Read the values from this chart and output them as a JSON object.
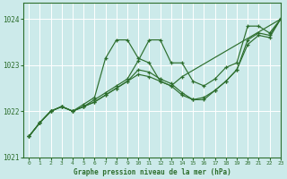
{
  "title": "Graphe pression niveau de la mer (hPa)",
  "bg_color": "#cceaea",
  "grid_color": "#aadddd",
  "line_color": "#2d6e2d",
  "xlim": [
    -0.5,
    23
  ],
  "ylim": [
    1021.0,
    1024.35
  ],
  "yticks": [
    1021,
    1022,
    1023,
    1024
  ],
  "xticks": [
    0,
    1,
    2,
    3,
    4,
    5,
    6,
    7,
    8,
    9,
    10,
    11,
    12,
    13,
    14,
    15,
    16,
    17,
    18,
    19,
    20,
    21,
    22,
    23
  ],
  "series": [
    {
      "x": [
        0,
        1,
        2,
        3,
        4,
        5,
        6,
        7,
        8,
        9,
        10,
        11,
        12,
        13,
        14,
        23
      ],
      "y": [
        1021.45,
        1021.75,
        1022.0,
        1022.1,
        1022.0,
        1022.15,
        1022.3,
        1023.15,
        1023.55,
        1023.55,
        1023.15,
        1023.05,
        1022.65,
        1022.55,
        1022.75,
        1024.0
      ]
    },
    {
      "x": [
        0,
        1,
        2,
        3,
        4,
        5,
        6,
        7,
        8,
        9,
        10,
        11,
        12,
        13,
        14,
        15,
        16,
        17,
        18,
        19,
        20,
        21,
        22,
        23
      ],
      "y": [
        1021.45,
        1021.75,
        1022.0,
        1022.1,
        1022.0,
        1022.1,
        1022.2,
        1022.35,
        1022.5,
        1022.65,
        1022.8,
        1022.75,
        1022.65,
        1022.55,
        1022.35,
        1022.25,
        1022.3,
        1022.45,
        1022.65,
        1022.9,
        1023.45,
        1023.65,
        1023.6,
        1024.0
      ]
    },
    {
      "x": [
        0,
        1,
        2,
        3,
        4,
        5,
        6,
        7,
        8,
        9,
        10,
        11,
        12,
        13,
        14,
        15,
        16,
        17,
        18,
        19,
        20,
        21,
        22,
        23
      ],
      "y": [
        1021.45,
        1021.75,
        1022.0,
        1022.1,
        1022.0,
        1022.1,
        1022.2,
        1022.35,
        1022.5,
        1022.65,
        1022.9,
        1022.85,
        1022.7,
        1022.6,
        1022.4,
        1022.25,
        1022.25,
        1022.45,
        1022.65,
        1022.9,
        1023.55,
        1023.7,
        1023.65,
        1024.0
      ]
    },
    {
      "x": [
        0,
        1,
        2,
        3,
        4,
        5,
        6,
        7,
        8,
        9,
        10,
        11,
        12,
        13,
        14,
        15,
        16,
        17,
        18,
        19,
        20,
        21,
        22,
        23
      ],
      "y": [
        1021.45,
        1021.75,
        1022.0,
        1022.1,
        1022.0,
        1022.1,
        1022.25,
        1022.4,
        1022.55,
        1022.7,
        1023.1,
        1023.55,
        1023.55,
        1023.05,
        1023.05,
        1022.65,
        1022.55,
        1022.7,
        1022.95,
        1023.05,
        1023.85,
        1023.85,
        1023.7,
        1024.0
      ]
    }
  ]
}
